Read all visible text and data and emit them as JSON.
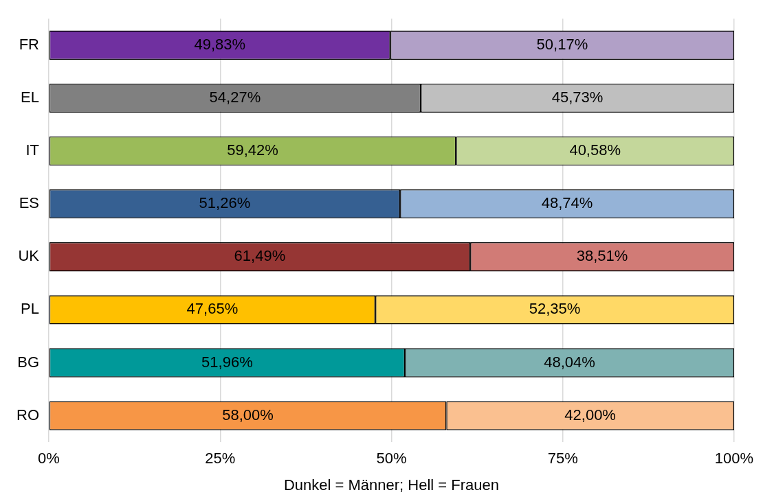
{
  "chart_data": {
    "type": "bar",
    "orientation": "horizontal",
    "stacked": true,
    "xlabel": "Dunkel = Männer; Hell = Frauen",
    "categories": [
      "FR",
      "EL",
      "IT",
      "ES",
      "UK",
      "PL",
      "BG",
      "RO"
    ],
    "series": [
      {
        "colors": [
          "#7030a0",
          "#808080",
          "#9bbb59",
          "#366092",
          "#963634",
          "#ffc000",
          "#009999",
          "#f79646"
        ],
        "values": [
          49.83,
          54.27,
          59.42,
          51.26,
          61.49,
          47.65,
          51.96,
          58.0
        ],
        "value_labels": [
          "49,83%",
          "54,27%",
          "59,42%",
          "51,26%",
          "61,49%",
          "47,65%",
          "51,96%",
          "58,00%"
        ]
      },
      {
        "colors": [
          "#b1a0c7",
          "#bfbfbf",
          "#c4d79b",
          "#95b3d7",
          "#d17b76",
          "#ffd966",
          "#7fb2b2",
          "#fac090"
        ],
        "values": [
          50.17,
          45.73,
          40.58,
          48.74,
          38.51,
          52.35,
          48.04,
          42.0
        ],
        "value_labels": [
          "50,17%",
          "45,73%",
          "40,58%",
          "48,74%",
          "38,51%",
          "52,35%",
          "48,04%",
          "42,00%"
        ]
      }
    ],
    "xlim": [
      0,
      100
    ],
    "xticks": [
      {
        "value": 0,
        "label": "0%"
      },
      {
        "value": 25,
        "label": "25%"
      },
      {
        "value": 50,
        "label": "50%"
      },
      {
        "value": 75,
        "label": "75%"
      },
      {
        "value": 100,
        "label": "100%"
      }
    ],
    "grid": "x"
  }
}
